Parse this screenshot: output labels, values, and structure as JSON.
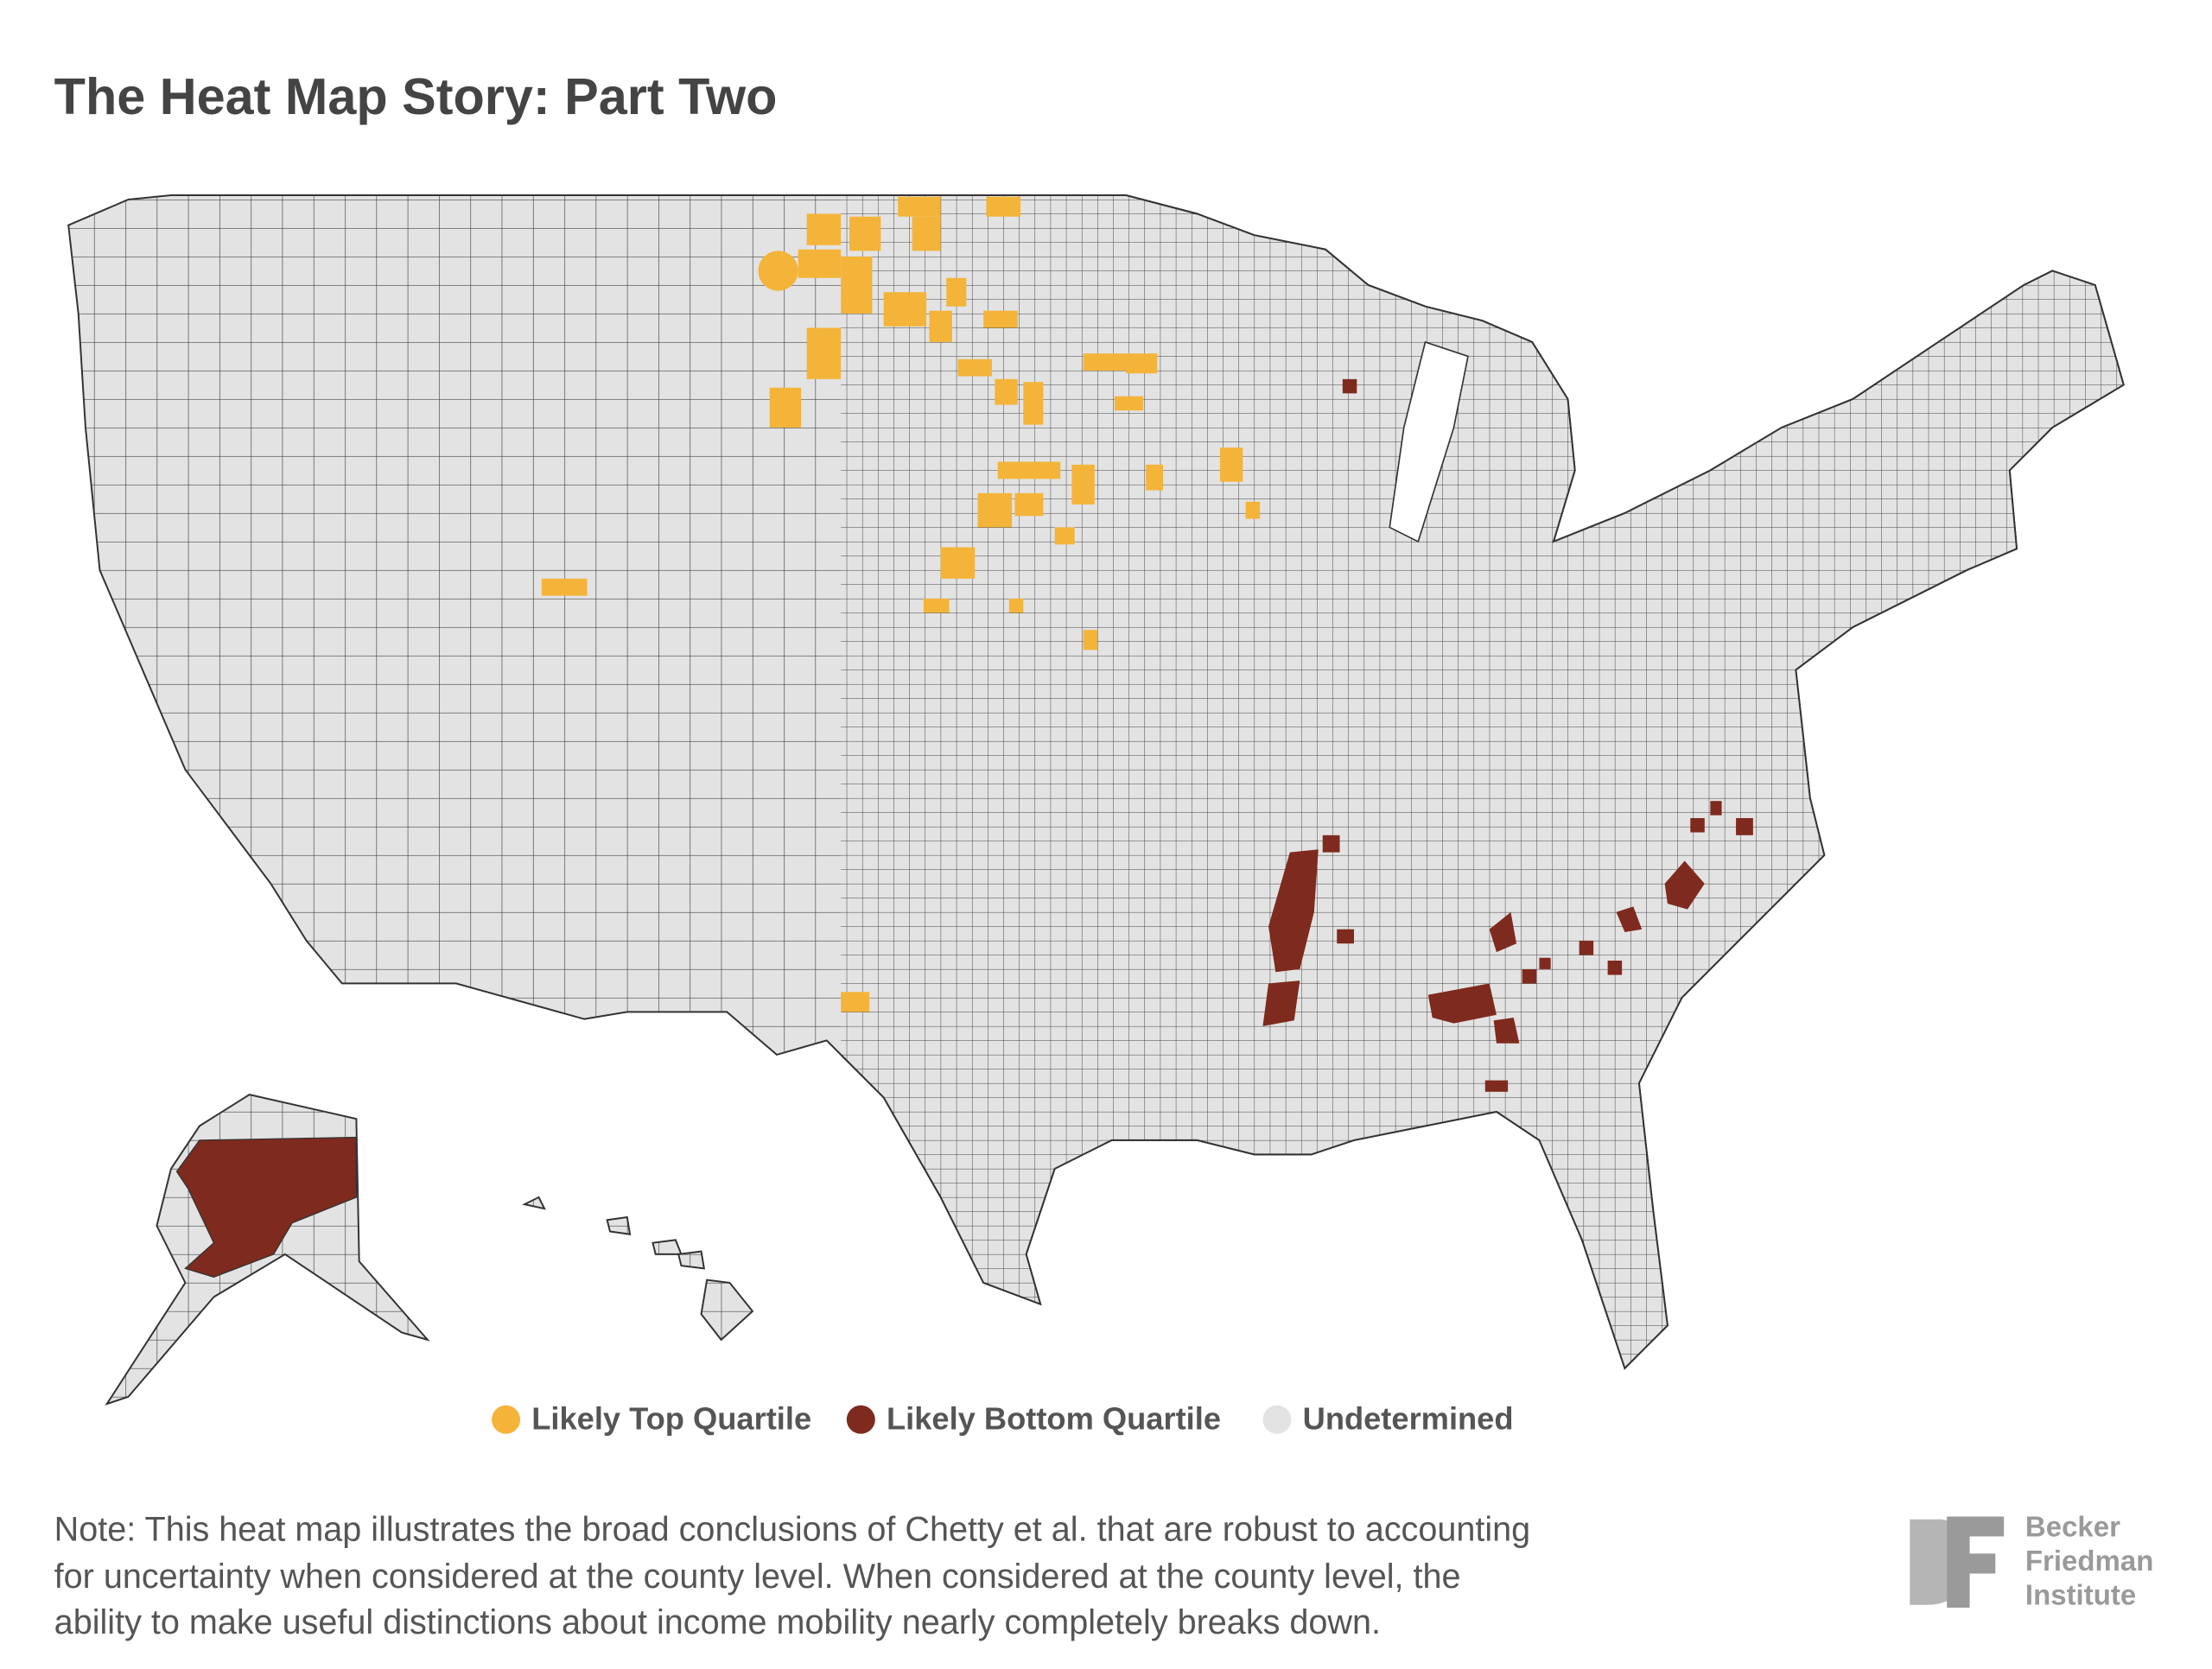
{
  "header": {
    "title": "The Heat Map Story: Part Two"
  },
  "legend": [
    {
      "label": "Likely Top Quartile",
      "color": "#f4b43a"
    },
    {
      "label": "Likely Bottom Quartile",
      "color": "#7f2a1e"
    },
    {
      "label": "Undetermined",
      "color": "#e3e3e3"
    }
  ],
  "note": [
    "Note: This heat map illustrates the broad conclusions of Chetty et al. that are robust to accounting",
    "for uncertainty when considered at the county level. When considered at the county level, the",
    "ability to make useful distinctions about income mobility nearly completely breaks down."
  ],
  "logo": [
    "Becker",
    "Friedman",
    "Institute"
  ]
}
